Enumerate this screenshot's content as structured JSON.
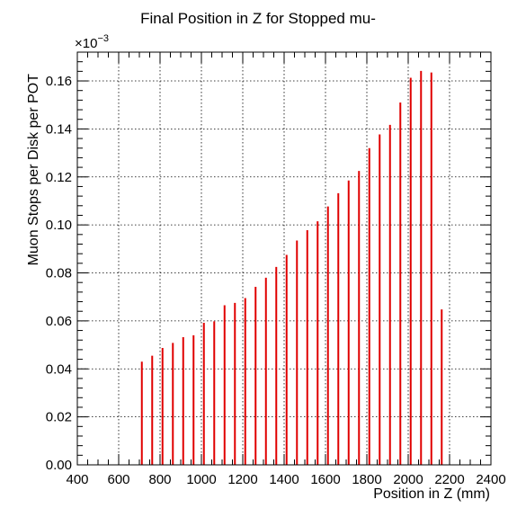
{
  "chart_data": {
    "type": "bar",
    "title": "Final Position in Z for Stopped mu-",
    "xlabel": "Position in Z (mm)",
    "ylabel": "Muon Stops per Disk per POT",
    "y_exponent_base": "×10",
    "y_exponent_power": "−3",
    "xlim": [
      400,
      2400
    ],
    "ylim": [
      0,
      0.172
    ],
    "grid": true,
    "bar_color": "#e00000",
    "x_ticks": [
      400,
      600,
      800,
      1000,
      1200,
      1400,
      1600,
      1800,
      2000,
      2200,
      2400
    ],
    "x_tick_labels": [
      "400",
      "600",
      "800",
      "1000",
      "1200",
      "1400",
      "1600",
      "1800",
      "2000",
      "2200",
      "2400"
    ],
    "y_ticks": [
      0,
      0.02,
      0.04,
      0.06,
      0.08,
      0.1,
      0.12,
      0.14,
      0.16
    ],
    "y_tick_labels": [
      "0.00",
      "0.02",
      "0.04",
      "0.06",
      "0.08",
      "0.10",
      "0.12",
      "0.14",
      "0.16"
    ],
    "series": [
      {
        "x": [
          712,
          762,
          812,
          862,
          912,
          962,
          1012,
          1062,
          1112,
          1162,
          1212,
          1262,
          1312,
          1362,
          1412,
          1462,
          1512,
          1562,
          1612,
          1662,
          1712,
          1762,
          1812,
          1862,
          1912,
          1962,
          2012,
          2062,
          2112,
          2162
        ],
        "values": [
          0.043,
          0.0455,
          0.0487,
          0.0508,
          0.0532,
          0.054,
          0.0592,
          0.0598,
          0.0665,
          0.0675,
          0.0695,
          0.0742,
          0.078,
          0.0825,
          0.0875,
          0.0935,
          0.0978,
          0.1015,
          0.1077,
          0.1132,
          0.1185,
          0.1225,
          0.132,
          0.1377,
          0.1417,
          0.151,
          0.1613,
          0.1642,
          0.1635,
          0.0648
        ]
      }
    ]
  }
}
